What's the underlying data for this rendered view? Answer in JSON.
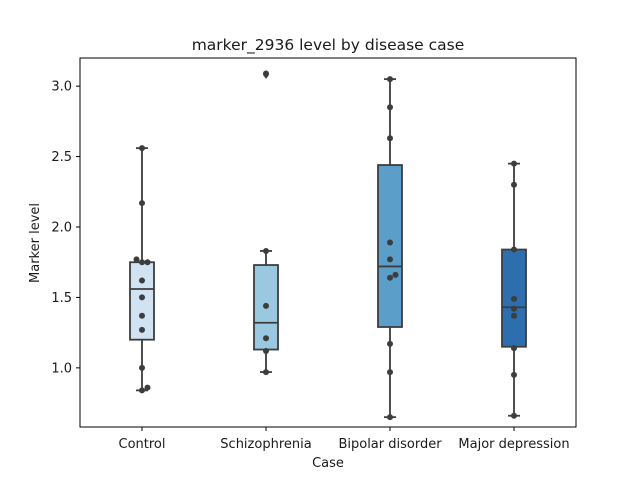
{
  "chart_data": {
    "type": "box",
    "title": "marker_2936 level by disease case",
    "xlabel": "Case",
    "ylabel": "Marker level",
    "ylim": [
      0.58,
      3.2
    ],
    "yticks": [
      1.0,
      1.5,
      2.0,
      2.5,
      3.0
    ],
    "ytick_labels": [
      "1.0",
      "1.5",
      "2.0",
      "2.5",
      "3.0"
    ],
    "grid": false,
    "categories": [
      "Control",
      "Schizophrenia",
      "Bipolar disorder",
      "Major depression"
    ],
    "colors": [
      "#d1e2f2",
      "#9ac8e0",
      "#5a9ec9",
      "#2d6fae"
    ],
    "boxes": [
      {
        "category": "Control",
        "q1": 1.2,
        "median": 1.56,
        "q3": 1.75,
        "whisker_low": 0.84,
        "whisker_high": 2.56,
        "outliers": []
      },
      {
        "category": "Schizophrenia",
        "q1": 1.13,
        "median": 1.32,
        "q3": 1.73,
        "whisker_low": 0.97,
        "whisker_high": 1.83,
        "outliers": [
          3.08
        ]
      },
      {
        "category": "Bipolar disorder",
        "q1": 1.29,
        "median": 1.72,
        "q3": 2.44,
        "whisker_low": 0.65,
        "whisker_high": 3.05,
        "outliers": []
      },
      {
        "category": "Major depression",
        "q1": 1.15,
        "median": 1.43,
        "q3": 1.84,
        "whisker_low": 0.66,
        "whisker_high": 2.45,
        "outliers": []
      }
    ],
    "points": [
      {
        "category": "Control",
        "values": [
          2.56,
          2.17,
          1.77,
          1.75,
          1.75,
          1.62,
          1.5,
          1.37,
          1.27,
          1.0,
          0.86,
          0.84
        ]
      },
      {
        "category": "Schizophrenia",
        "values": [
          3.09,
          1.83,
          1.44,
          1.21,
          1.12,
          0.97
        ]
      },
      {
        "category": "Bipolar disorder",
        "values": [
          3.05,
          2.85,
          2.63,
          1.89,
          1.77,
          1.66,
          1.64,
          1.17,
          0.97,
          0.65
        ]
      },
      {
        "category": "Major depression",
        "values": [
          2.45,
          2.3,
          1.84,
          1.49,
          1.42,
          1.37,
          1.14,
          0.95,
          0.66
        ]
      }
    ]
  }
}
